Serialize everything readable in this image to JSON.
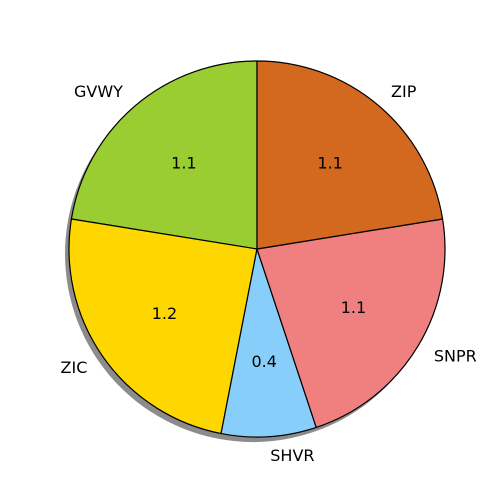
{
  "chart_data": {
    "type": "pie",
    "title": "",
    "shadow": true,
    "start_angle_deg": 90,
    "direction": "counterclockwise",
    "slices": [
      {
        "label": "GVWY",
        "value": 1.1,
        "value_label": "1.1",
        "color": "#9acd32"
      },
      {
        "label": "ZIC",
        "value": 1.2,
        "value_label": "1.2",
        "color": "#ffd700"
      },
      {
        "label": "SHVR",
        "value": 0.4,
        "value_label": "0.4",
        "color": "#87cefa"
      },
      {
        "label": "SNPR",
        "value": 1.1,
        "value_label": "1.1",
        "color": "#f08080"
      },
      {
        "label": "ZIP",
        "value": 1.1,
        "value_label": "1.1",
        "color": "#d2691e"
      }
    ]
  }
}
